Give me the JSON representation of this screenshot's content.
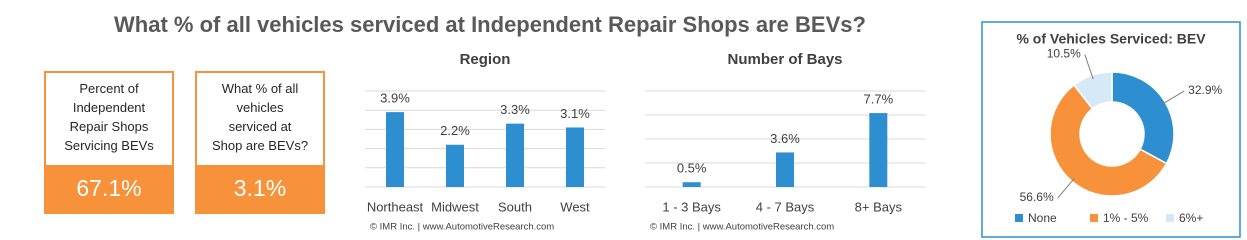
{
  "title": "What % of all vehicles serviced at Independent Repair Shops are BEVs?",
  "kpis": [
    {
      "lines": [
        "Percent of",
        "Independent",
        "Repair Shops",
        "Servicing BEVs"
      ],
      "value": "67.1%"
    },
    {
      "lines": [
        "What % of all",
        "vehicles",
        "serviced at",
        "Shop are BEVs?"
      ],
      "value": "3.1%"
    }
  ],
  "chart_data": [
    {
      "type": "bar",
      "title": "Region",
      "categories": [
        "Northeast",
        "Midwest",
        "South",
        "West"
      ],
      "values": [
        3.9,
        2.2,
        3.3,
        3.1
      ],
      "value_labels": [
        "3.9%",
        "2.2%",
        "3.3%",
        "3.1%"
      ],
      "color": "#2e8fd0",
      "ylim": [
        0,
        5
      ],
      "yticks": [
        0,
        1,
        2,
        3,
        4,
        5
      ],
      "grid": true,
      "source": "© IMR Inc. | www.AutomotiveResearch.com"
    },
    {
      "type": "bar",
      "title": "Number of Bays",
      "categories": [
        "1 - 3 Bays",
        "4 - 7 Bays",
        "8+ Bays"
      ],
      "values": [
        0.5,
        3.6,
        7.7
      ],
      "value_labels": [
        "0.5%",
        "3.6%",
        "7.7%"
      ],
      "color": "#2e8fd0",
      "ylim": [
        0,
        10
      ],
      "yticks": [
        0,
        2.5,
        5,
        7.5,
        10
      ],
      "grid": true,
      "source": "© IMR Inc. | www.AutomotiveResearch.com"
    },
    {
      "type": "donut",
      "title": "% of Vehicles Serviced: BEV",
      "categories": [
        "None",
        "1% - 5%",
        "6%+"
      ],
      "values": [
        32.9,
        56.6,
        10.5
      ],
      "value_labels": [
        "32.9%",
        "56.6%",
        "10.5%"
      ],
      "colors": [
        "#2e8fd0",
        "#f7923a",
        "#d6e9f7"
      ],
      "legend": "bottom"
    }
  ]
}
